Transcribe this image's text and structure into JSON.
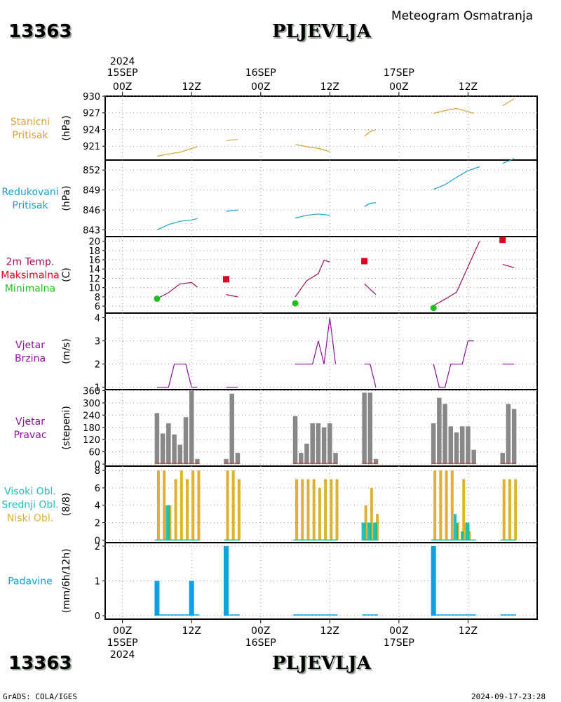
{
  "header": {
    "station_id": "13363",
    "station_name": "PLJEVLJA",
    "subtitle": "Meteogram Osmatranja"
  },
  "time_axis": {
    "year": "2024",
    "day_labels": [
      "15SEP",
      "16SEP",
      "17SEP"
    ],
    "hour_labels": [
      "00Z",
      "12Z",
      "00Z",
      "12Z",
      "00Z",
      "12Z"
    ],
    "hour_ticks": [
      0,
      12,
      24,
      36,
      48,
      60
    ],
    "day_ticks": [
      0,
      24,
      48
    ]
  },
  "footer": {
    "left": "GrADS: COLA/IGES",
    "right": "2024-09-17-23:28"
  },
  "colors": {
    "pressure": "#e0a030",
    "reduced": "#1aa0d0",
    "temp": "#a01060",
    "tmax": "#e00020",
    "tmin": "#20c020",
    "wind": "#9010a0",
    "direction": "#888888",
    "high_cloud": "#20c0c0",
    "mid_cloud": "#20c080",
    "low_cloud": "#e0b030",
    "precip": "#10a0e0"
  },
  "chart_data": [
    {
      "type": "line",
      "id": "stanicni",
      "labels": [
        "Stanicni",
        "Pritisak"
      ],
      "ylabel": "(hPa)",
      "ylim": [
        918.5,
        930
      ],
      "yticks": [
        921,
        924,
        927,
        930
      ],
      "series": [
        {
          "points": [
            [
              6,
              919.2
            ],
            [
              8,
              919.6
            ],
            [
              10,
              919.9
            ],
            [
              12,
              920.6
            ],
            [
              13,
              920.9
            ]
          ]
        },
        {
          "points": [
            [
              18,
              922.0
            ],
            [
              20,
              922.2
            ]
          ]
        },
        {
          "points": [
            [
              30,
              921.3
            ],
            [
              32,
              920.9
            ],
            [
              34,
              920.6
            ],
            [
              36,
              920.0
            ]
          ]
        },
        {
          "points": [
            [
              42,
              922.8
            ],
            [
              43,
              923.6
            ],
            [
              44,
              924.0
            ]
          ]
        },
        {
          "points": [
            [
              54,
              926.9
            ],
            [
              56,
              927.4
            ],
            [
              58,
              927.8
            ],
            [
              60,
              927.2
            ],
            [
              61,
              926.9
            ]
          ]
        },
        {
          "points": [
            [
              66,
              928.3
            ],
            [
              68,
              929.5
            ]
          ]
        }
      ]
    },
    {
      "type": "line",
      "id": "redukovani",
      "labels": [
        "Redukovani",
        "Pritisak"
      ],
      "ylabel": "(hPa)",
      "ylim": [
        842,
        853.5
      ],
      "yticks": [
        843,
        846,
        849,
        852
      ],
      "series": [
        {
          "points": [
            [
              6,
              843.0
            ],
            [
              8,
              843.8
            ],
            [
              10,
              844.3
            ],
            [
              12,
              844.5
            ],
            [
              13,
              844.7
            ]
          ]
        },
        {
          "points": [
            [
              18,
              845.8
            ],
            [
              20,
              846.0
            ]
          ]
        },
        {
          "points": [
            [
              30,
              844.8
            ],
            [
              32,
              845.2
            ],
            [
              34,
              845.4
            ],
            [
              36,
              845.2
            ]
          ]
        },
        {
          "points": [
            [
              42,
              846.5
            ],
            [
              43,
              847.0
            ],
            [
              44,
              847.1
            ]
          ]
        },
        {
          "points": [
            [
              54,
              849.1
            ],
            [
              56,
              849.8
            ],
            [
              58,
              850.9
            ],
            [
              60,
              851.9
            ],
            [
              62,
              852.5
            ]
          ]
        },
        {
          "points": [
            [
              66,
              853.0
            ],
            [
              68,
              853.7
            ]
          ]
        }
      ]
    },
    {
      "type": "line",
      "id": "temperatura",
      "labels": [
        "2m Temp.",
        "Maksimalna",
        "Minimalna"
      ],
      "ylabel": "(C)",
      "ylim": [
        4.5,
        21
      ],
      "yticks": [
        6,
        8,
        10,
        12,
        14,
        16,
        18,
        20
      ],
      "series": [
        {
          "name": "2m Temp.",
          "points": [
            [
              6,
              7.6
            ],
            [
              8,
              8.9
            ],
            [
              10,
              10.8
            ],
            [
              12,
              11.1
            ],
            [
              13,
              10.1
            ]
          ]
        },
        {
          "name": "2m Temp.",
          "points": [
            [
              18,
              8.5
            ],
            [
              20,
              8.0
            ]
          ]
        },
        {
          "name": "2m Temp.",
          "points": [
            [
              30,
              8.0
            ],
            [
              32,
              11.5
            ],
            [
              34,
              13.0
            ],
            [
              35,
              15.9
            ],
            [
              36,
              15.5
            ]
          ]
        },
        {
          "name": "2m Temp.",
          "points": [
            [
              42,
              10.8
            ],
            [
              44,
              8.5
            ]
          ]
        },
        {
          "name": "2m Temp.",
          "points": [
            [
              54,
              6.1
            ],
            [
              56,
              7.5
            ],
            [
              58,
              9.0
            ],
            [
              60,
              14.5
            ],
            [
              62,
              20.0
            ]
          ]
        },
        {
          "name": "2m Temp.",
          "points": [
            [
              66,
              15.0
            ],
            [
              68,
              14.3
            ]
          ]
        }
      ],
      "max_markers": [
        [
          18,
          11.8
        ],
        [
          42,
          15.7
        ],
        [
          66,
          20.3
        ]
      ],
      "min_markers": [
        [
          6,
          7.6
        ],
        [
          30,
          6.6
        ],
        [
          54,
          5.6
        ]
      ]
    },
    {
      "type": "line",
      "id": "vjetar",
      "labels": [
        "Vjetar",
        "Brzina"
      ],
      "ylabel": "(m/s)",
      "ylim": [
        0.9,
        4.2
      ],
      "yticks": [
        1,
        2,
        3,
        4
      ],
      "series": [
        {
          "points": [
            [
              6,
              1
            ],
            [
              8,
              1
            ],
            [
              9,
              2
            ],
            [
              11,
              2
            ],
            [
              12,
              1
            ],
            [
              13,
              1
            ]
          ]
        },
        {
          "points": [
            [
              18,
              1
            ],
            [
              20,
              1
            ]
          ]
        },
        {
          "points": [
            [
              30,
              2
            ],
            [
              33,
              2
            ],
            [
              34,
              3
            ],
            [
              35,
              2
            ],
            [
              36,
              4
            ],
            [
              37,
              2
            ]
          ]
        },
        {
          "points": [
            [
              42,
              2
            ],
            [
              43,
              2
            ],
            [
              44,
              1
            ]
          ]
        },
        {
          "points": [
            [
              54,
              2
            ],
            [
              55,
              1
            ],
            [
              56,
              1
            ],
            [
              57,
              2
            ],
            [
              59,
              2
            ],
            [
              60,
              3
            ],
            [
              61,
              3
            ]
          ]
        },
        {
          "points": [
            [
              66,
              2
            ],
            [
              68,
              2
            ]
          ]
        }
      ]
    },
    {
      "type": "bar",
      "id": "pravac",
      "labels": [
        "Vjetar",
        "Pravac"
      ],
      "ylabel": "(stepeni)",
      "ylim": [
        -10,
        365
      ],
      "yticks": [
        0,
        60,
        120,
        180,
        240,
        300,
        360
      ],
      "x": [
        6,
        7,
        8,
        9,
        10,
        11,
        12,
        13,
        18,
        19,
        20,
        30,
        31,
        32,
        33,
        34,
        35,
        36,
        37,
        42,
        43,
        44,
        54,
        55,
        56,
        57,
        58,
        59,
        60,
        61,
        66,
        67,
        68
      ],
      "values": [
        250,
        150,
        200,
        145,
        95,
        230,
        360,
        25,
        25,
        345,
        55,
        235,
        55,
        100,
        200,
        200,
        180,
        200,
        55,
        350,
        350,
        25,
        200,
        325,
        295,
        185,
        155,
        185,
        185,
        70,
        55,
        295,
        270
      ]
    },
    {
      "type": "bar",
      "id": "oblaci",
      "labels": [
        "Visoki Obl.",
        "Srednji Obl.",
        "Niski Obl."
      ],
      "ylabel": "(8/8)",
      "ylim": [
        -0.3,
        8.5
      ],
      "yticks": [
        0,
        2,
        4,
        6,
        8
      ],
      "series": [
        {
          "name": "Visoki Obl.",
          "x": [
            8,
            42,
            43,
            44,
            58,
            60
          ],
          "values": [
            4,
            2,
            2,
            2,
            3,
            2
          ]
        },
        {
          "name": "Srednji Obl.",
          "x": [
            8,
            42,
            43,
            44,
            58,
            59,
            60
          ],
          "values": [
            4,
            2,
            2,
            2,
            2,
            1,
            2
          ]
        },
        {
          "name": "Niski Obl.",
          "x": [
            6,
            7,
            8,
            9,
            10,
            11,
            12,
            13,
            18,
            19,
            20,
            30,
            31,
            32,
            33,
            34,
            35,
            36,
            37,
            42,
            43,
            44,
            54,
            55,
            56,
            57,
            58,
            59,
            60,
            66,
            67,
            68
          ],
          "values": [
            8,
            8,
            4,
            7,
            8,
            7,
            8,
            8,
            8,
            8,
            7,
            7,
            7,
            7,
            7,
            6,
            7,
            7,
            7,
            4,
            6,
            3,
            8,
            8,
            8,
            8,
            2,
            7,
            1,
            7,
            7,
            7
          ]
        }
      ]
    },
    {
      "type": "bar",
      "id": "padavine",
      "labels": [
        "Padavine"
      ],
      "ylabel": "(mm/6h/12h)",
      "ylim": [
        -0.1,
        2.1
      ],
      "yticks": [
        0,
        1,
        2
      ],
      "x": [
        6,
        12,
        18,
        54
      ],
      "values": [
        1,
        1,
        2,
        2
      ],
      "trace_segments": [
        [
          6,
          13
        ],
        [
          18,
          20
        ],
        [
          30,
          37
        ],
        [
          42,
          44
        ],
        [
          54,
          61
        ],
        [
          66,
          68
        ]
      ]
    }
  ]
}
